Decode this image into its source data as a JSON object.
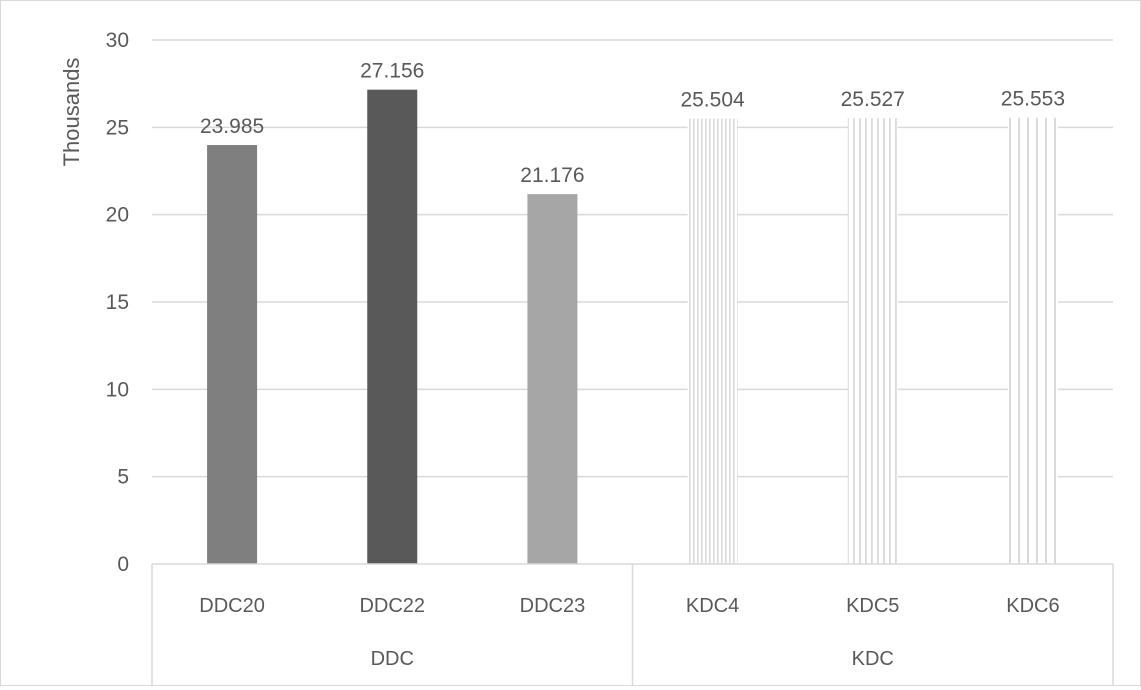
{
  "chart_data": {
    "type": "bar",
    "ylabel": "Thousands",
    "ylim": [
      0,
      30
    ],
    "yticks": [
      0,
      5,
      10,
      15,
      20,
      25,
      30
    ],
    "grid": true,
    "categories": [
      "DDC20",
      "DDC22",
      "DDC23",
      "KDC4",
      "KDC5",
      "KDC6"
    ],
    "groups": [
      {
        "label": "DDC",
        "categories": [
          "DDC20",
          "DDC22",
          "DDC23"
        ]
      },
      {
        "label": "KDC",
        "categories": [
          "KDC4",
          "KDC5",
          "KDC6"
        ]
      }
    ],
    "values": [
      23.985,
      27.156,
      21.176,
      25.504,
      25.527,
      25.553
    ],
    "data_labels": [
      "23.985",
      "27.156",
      "21.176",
      "25.504",
      "25.527",
      "25.553"
    ],
    "bar_styles": [
      {
        "fill": "#7f7f7f",
        "pattern": "solid"
      },
      {
        "fill": "#595959",
        "pattern": "solid"
      },
      {
        "fill": "#a6a6a6",
        "pattern": "solid"
      },
      {
        "fill": "#d9d9d9",
        "pattern": "vertical-stripes-narrow"
      },
      {
        "fill": "#d9d9d9",
        "pattern": "vertical-stripes-medium"
      },
      {
        "fill": "#d9d9d9",
        "pattern": "vertical-stripes-wide"
      }
    ],
    "colors": {
      "grid": "#d9d9d9",
      "text": "#595959",
      "axis": "#bfbfbf"
    }
  }
}
